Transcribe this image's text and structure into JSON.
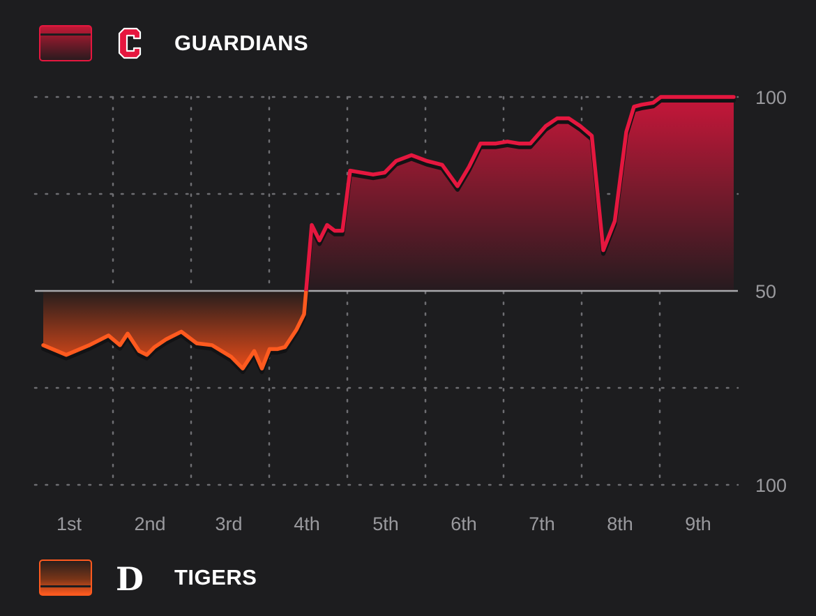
{
  "teams": {
    "top": {
      "name": "GUARDIANS",
      "logo_letter": "C",
      "color": "#e5173f"
    },
    "bottom": {
      "name": "TIGERS",
      "logo_letter": "D",
      "color": "#ff5a1f"
    }
  },
  "colors": {
    "background": "#1d1d1f",
    "grid": "#6e6e72",
    "midline": "#a8a8ac",
    "label": "#9a9a9e"
  },
  "chart_data": {
    "type": "area",
    "y_tick_labels": [
      "100",
      "50",
      "100"
    ],
    "categories": [
      "1st",
      "2nd",
      "3rd",
      "4th",
      "5th",
      "6th",
      "7th",
      "8th",
      "9th"
    ],
    "x_range": [
      0,
      9
    ],
    "y_range": [
      -100,
      100
    ],
    "baseline": 0,
    "grid": true,
    "series": [
      {
        "name": "GUARDIANS",
        "color": "#e5173f",
        "x": [
          0.0,
          0.3,
          0.6,
          0.85,
          1.0,
          1.1,
          1.25,
          1.35,
          1.45,
          1.6,
          1.8,
          2.0,
          2.2,
          2.45,
          2.6,
          2.75,
          2.85,
          2.95,
          3.05,
          3.15,
          3.3,
          3.4,
          3.5,
          3.6,
          3.7,
          3.8,
          3.9,
          4.0,
          4.15,
          4.3,
          4.45,
          4.6,
          4.8,
          5.0,
          5.2,
          5.4,
          5.55,
          5.7,
          5.9,
          6.05,
          6.2,
          6.35,
          6.55,
          6.7,
          6.85,
          7.0,
          7.15,
          7.3,
          7.45,
          7.6,
          7.7,
          7.8,
          7.95,
          8.05,
          8.2,
          8.4,
          8.55,
          8.7,
          8.8,
          9.0
        ],
        "y": [
          -28,
          -33,
          -28,
          -23,
          -28,
          -22,
          -31,
          -33,
          -29,
          -25,
          -21,
          -27,
          -28,
          -34,
          -40,
          -31,
          -40,
          -30,
          -30,
          -29,
          -20,
          -12,
          34,
          26,
          34,
          31,
          31,
          62,
          61,
          60,
          61,
          67,
          70,
          67,
          65,
          54,
          64,
          76,
          76,
          77,
          76,
          76,
          85,
          89,
          89,
          85,
          80,
          21,
          36,
          82,
          95,
          96,
          97,
          100,
          100,
          100,
          100,
          100,
          100,
          100
        ]
      }
    ]
  }
}
